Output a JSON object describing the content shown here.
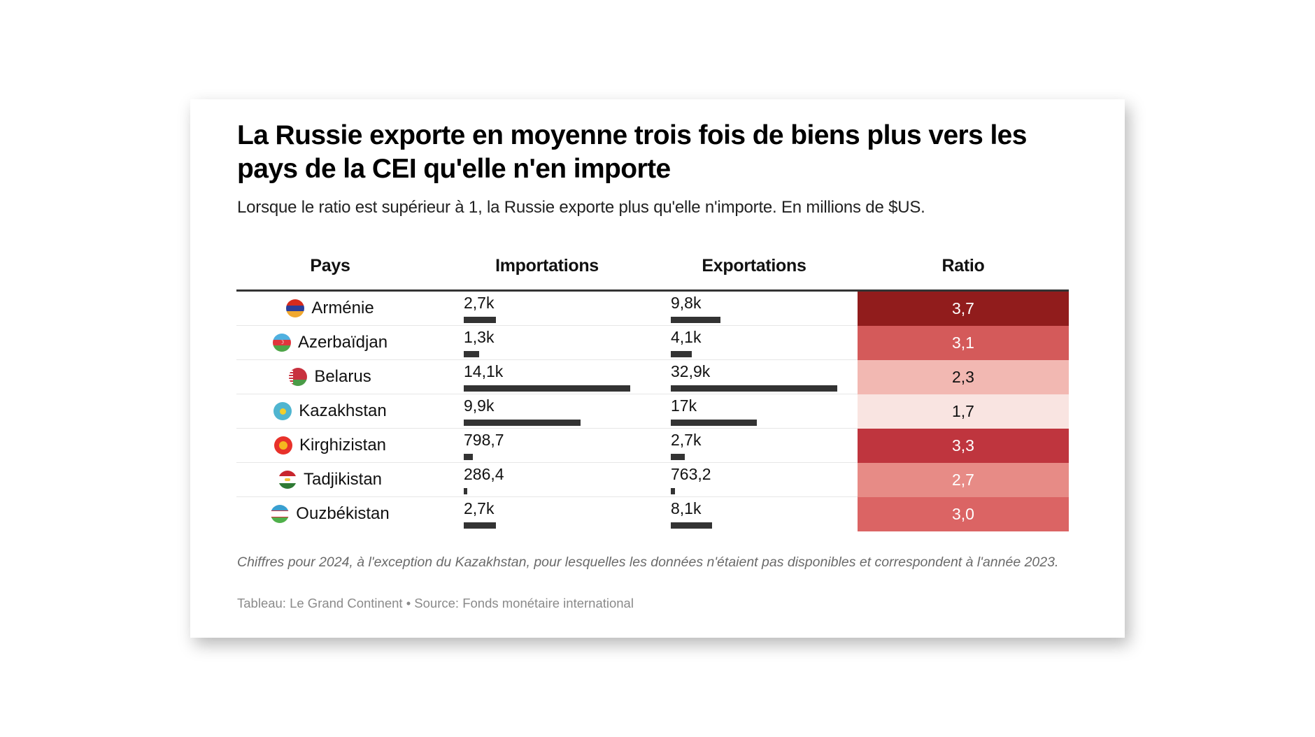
{
  "header": {
    "title": "La Russie exporte en moyenne trois fois de biens plus vers les pays de la CEI qu'elle n'en importe",
    "subtitle": "Lorsque le ratio est supérieur à 1, la Russie exporte plus qu'elle n'importe. En millions de $US."
  },
  "columns": {
    "country": "Pays",
    "imports": "Importations",
    "exports": "Exportations",
    "ratio": "Ratio"
  },
  "colors": {
    "bar": "#333333",
    "ratio_scale": [
      "#f9e4e1",
      "#f2b8b2",
      "#e78b86",
      "#db6464",
      "#d45a5a",
      "#bf353e",
      "#911c1c"
    ]
  },
  "chart_data": {
    "type": "table",
    "title": "La Russie exporte en moyenne trois fois de biens plus vers les pays de la CEI qu'elle n'en importe",
    "subtitle": "Lorsque le ratio est supérieur à 1, la Russie exporte plus qu'elle n'importe. En millions de $US.",
    "unit": "millions de $US",
    "columns": [
      "Pays",
      "Importations",
      "Exportations",
      "Ratio"
    ],
    "rows": [
      {
        "country": "Arménie",
        "flag": "armenia-flag-icon",
        "imports": 2700,
        "imports_label": "2,7k",
        "exports": 9800,
        "exports_label": "9,8k",
        "ratio": 3.7,
        "ratio_label": "3,7",
        "ratio_color": "#911c1c",
        "ratio_text_color": "#ffffff"
      },
      {
        "country": "Azerbaïdjan",
        "flag": "azerbaijan-flag-icon",
        "imports": 1300,
        "imports_label": "1,3k",
        "exports": 4100,
        "exports_label": "4,1k",
        "ratio": 3.1,
        "ratio_label": "3,1",
        "ratio_color": "#d45a5a",
        "ratio_text_color": "#ffffff"
      },
      {
        "country": "Belarus",
        "flag": "belarus-flag-icon",
        "imports": 14100,
        "imports_label": "14,1k",
        "exports": 32900,
        "exports_label": "32,9k",
        "ratio": 2.3,
        "ratio_label": "2,3",
        "ratio_color": "#f2b8b2",
        "ratio_text_color": "#111111"
      },
      {
        "country": "Kazakhstan",
        "flag": "kazakhstan-flag-icon",
        "imports": 9900,
        "imports_label": "9,9k",
        "exports": 17000,
        "exports_label": "17k",
        "ratio": 1.7,
        "ratio_label": "1,7",
        "ratio_color": "#f9e4e1",
        "ratio_text_color": "#111111"
      },
      {
        "country": "Kirghizistan",
        "flag": "kyrgyzstan-flag-icon",
        "imports": 798.7,
        "imports_label": "798,7",
        "exports": 2700,
        "exports_label": "2,7k",
        "ratio": 3.3,
        "ratio_label": "3,3",
        "ratio_color": "#bf353e",
        "ratio_text_color": "#ffffff"
      },
      {
        "country": "Tadjikistan",
        "flag": "tajikistan-flag-icon",
        "imports": 286.4,
        "imports_label": "286,4",
        "exports": 763.2,
        "exports_label": "763,2",
        "ratio": 2.7,
        "ratio_label": "2,7",
        "ratio_color": "#e78b86",
        "ratio_text_color": "#ffffff"
      },
      {
        "country": "Ouzbékistan",
        "flag": "uzbekistan-flag-icon",
        "imports": 2700,
        "imports_label": "2,7k",
        "exports": 8100,
        "exports_label": "8,1k",
        "ratio": 3.0,
        "ratio_label": "3,0",
        "ratio_color": "#db6464",
        "ratio_text_color": "#ffffff"
      }
    ],
    "imports_max": 14100,
    "exports_max": 32900
  },
  "footer": {
    "note": "Chiffres pour 2024, à l'exception du Kazakhstan, pour lesquelles les données n'étaient pas disponibles et correspondent à l'année 2023.",
    "source": "Tableau: Le Grand Continent • Source: Fonds monétaire international"
  }
}
